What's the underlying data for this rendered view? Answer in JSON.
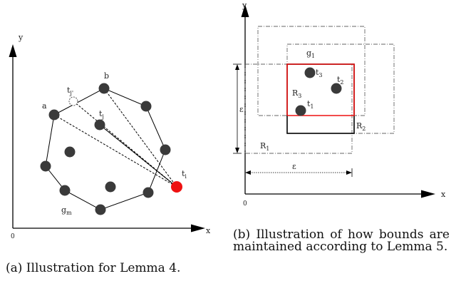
{
  "panel_a": {
    "axis_x": "x",
    "axis_y": "y",
    "origin": "0",
    "labels": {
      "a": "a",
      "b": "b",
      "tj_prime": "t",
      "tj_prime_sub": "j'",
      "tj": "t",
      "tj_sub": "j",
      "ti": "t",
      "ti_sub": "i",
      "gm": "g",
      "gm_sub": "m"
    },
    "caption": "(a) Illustration for Lemma 4."
  },
  "panel_b": {
    "axis_x": "x",
    "axis_y": "y",
    "origin": "0",
    "labels": {
      "g1": "g",
      "g1_sub": "1",
      "t1": "t",
      "t1_sub": "1",
      "t2": "t",
      "t2_sub": "2",
      "t3": "t",
      "t3_sub": "3",
      "R1": "R",
      "R1_sub": "1",
      "R2": "R",
      "R2_sub": "2",
      "R3": "R",
      "R3_sub": "3",
      "eps_v": "ε",
      "eps_h": "ε"
    },
    "caption": "(b) Illustration of how bounds are maintained according to Lemma 5."
  },
  "colors": {
    "point": "#3a3a3a",
    "highlight": "#ee1111",
    "line": "#000000",
    "dashed_rect": "#666666"
  }
}
